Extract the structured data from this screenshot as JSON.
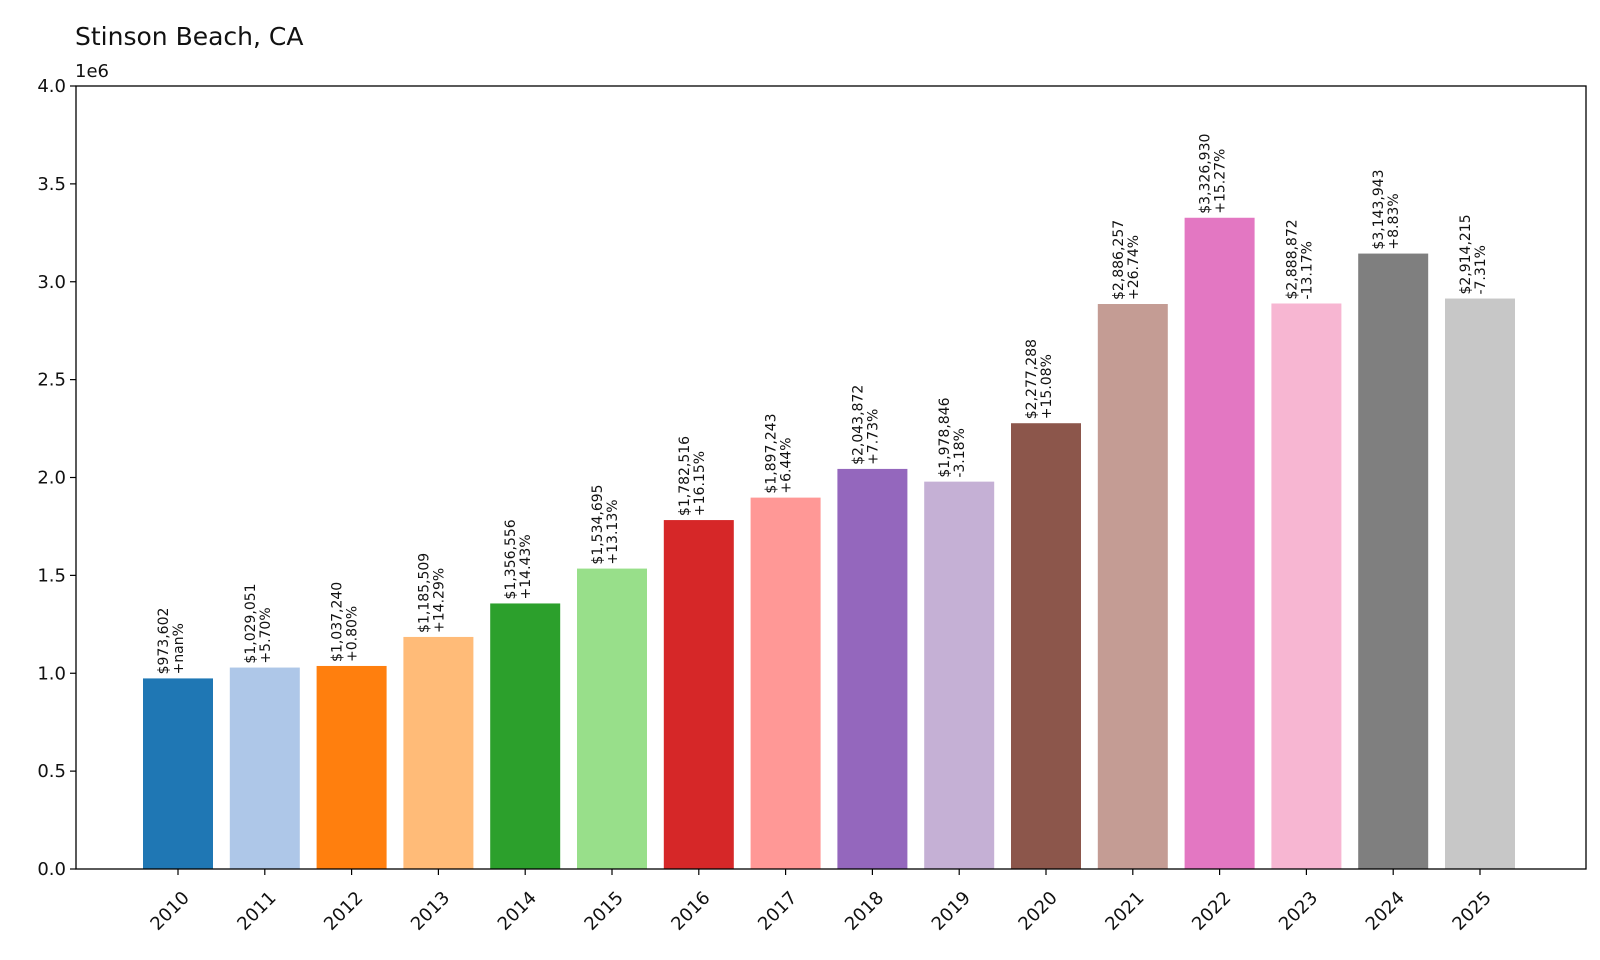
{
  "chart_data": {
    "type": "bar",
    "title": "Stinson Beach, CA",
    "xlabel": "",
    "ylabel": "",
    "y_offset_label": "1e6",
    "ylim": [
      0,
      4.0
    ],
    "y_ticks": [
      "0.0",
      "0.5",
      "1.0",
      "1.5",
      "2.0",
      "2.5",
      "3.0",
      "3.5",
      "4.0"
    ],
    "grid": false,
    "categories": [
      "2010",
      "2011",
      "2012",
      "2013",
      "2014",
      "2015",
      "2016",
      "2017",
      "2018",
      "2019",
      "2020",
      "2021",
      "2022",
      "2023",
      "2024",
      "2025"
    ],
    "values": [
      973602,
      1029051,
      1037240,
      1185509,
      1356556,
      1534695,
      1782516,
      1897243,
      2043872,
      1978846,
      2277288,
      2886257,
      3326930,
      2888872,
      3143943,
      2914215
    ],
    "value_labels": [
      "$973,602",
      "$1,029,051",
      "$1,037,240",
      "$1,185,509",
      "$1,356,556",
      "$1,534,695",
      "$1,782,516",
      "$1,897,243",
      "$2,043,872",
      "$1,978,846",
      "$2,277,288",
      "$2,886,257",
      "$3,326,930",
      "$2,888,872",
      "$3,143,943",
      "$2,914,215"
    ],
    "change_labels": [
      "+nan%",
      "+5.70%",
      "+0.80%",
      "+14.29%",
      "+14.43%",
      "+13.13%",
      "+16.15%",
      "+6.44%",
      "+7.73%",
      "-3.18%",
      "+15.08%",
      "+26.74%",
      "+15.27%",
      "-13.17%",
      "+8.83%",
      "-7.31%"
    ],
    "colors": [
      "#1f77b4",
      "#aec7e8",
      "#ff7f0e",
      "#ffbb78",
      "#2ca02c",
      "#98df8a",
      "#d62728",
      "#ff9896",
      "#9467bd",
      "#c5b0d5",
      "#8c564b",
      "#c49c94",
      "#e377c2",
      "#f7b6d2",
      "#7f7f7f",
      "#c7c7c7"
    ]
  }
}
